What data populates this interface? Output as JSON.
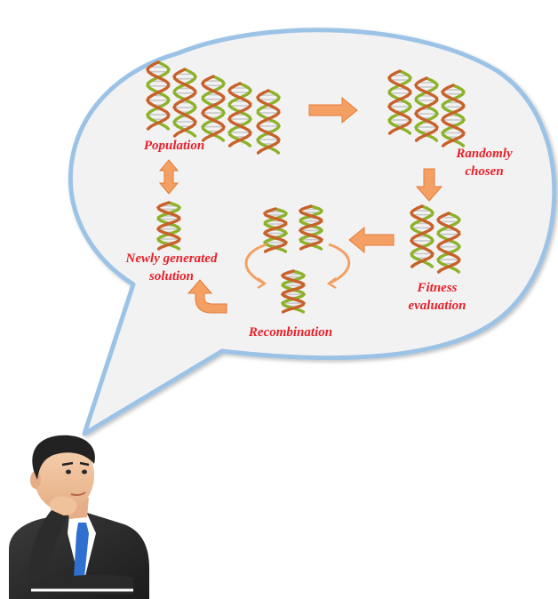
{
  "diagram": {
    "labels": {
      "population": "Population",
      "randomly_chosen_line1": "Randomly",
      "randomly_chosen_line2": "chosen",
      "fitness_line1": "Fitness",
      "fitness_line2": "evaluation",
      "recombination": "Recombination",
      "newly_line1": "Newly generated",
      "newly_line2": "solution"
    },
    "colors": {
      "label": "#e8202a",
      "arrow": "#f4a064",
      "arrow_dark": "#e57b35",
      "bubble_fill": "#f2f2f2",
      "bubble_stroke": "#9cc3e6",
      "dna_strand_a": "#8db22a",
      "dna_strand_b": "#c8612a",
      "dna_rung": "#c8c8c8"
    },
    "icons": {
      "dna": "dna-helix-icon",
      "arrow": "arrow-icon",
      "person": "thinking-businessman-figure"
    }
  }
}
